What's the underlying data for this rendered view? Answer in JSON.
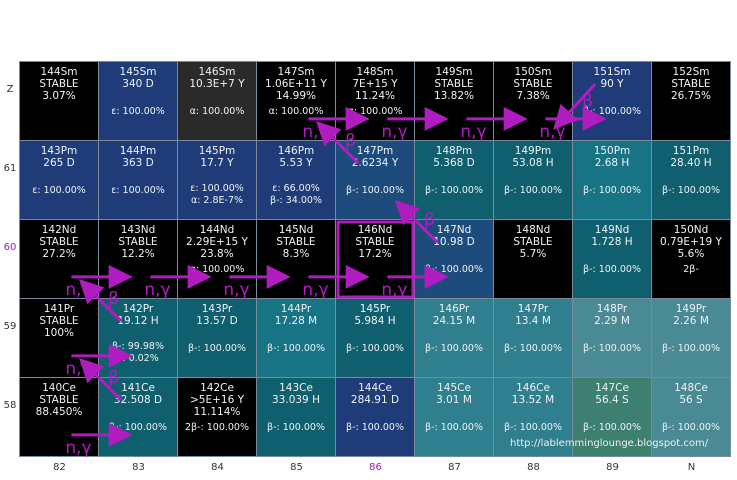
{
  "y_labels": [
    "Z",
    "61",
    "60",
    "59",
    "58"
  ],
  "x_labels": [
    "82",
    "83",
    "84",
    "85",
    "86",
    "87",
    "88",
    "89",
    "N"
  ],
  "highlight_color": "#a020a0",
  "rows": [
    [
      {
        "name": "144Sm",
        "l1": "STABLE",
        "l2": "3.07%",
        "l3": "",
        "color": "black"
      },
      {
        "name": "145Sm",
        "l1": "340 D",
        "l2": "",
        "l3": "ε: 100.00%",
        "color": "navy"
      },
      {
        "name": "146Sm",
        "l1": "10.3E+7 Y",
        "l2": "",
        "l3": "α: 100.00%",
        "color": "gray"
      },
      {
        "name": "147Sm",
        "l1": "1.06E+11 Y",
        "l2": "14.99%",
        "l3": "α: 100.00%",
        "color": "black"
      },
      {
        "name": "148Sm",
        "l1": "7E+15 Y",
        "l2": "11.24%",
        "l3": "α: 100.00%",
        "color": "black"
      },
      {
        "name": "149Sm",
        "l1": "STABLE",
        "l2": "13.82%",
        "l3": "",
        "color": "black"
      },
      {
        "name": "150Sm",
        "l1": "STABLE",
        "l2": "7.38%",
        "l3": "",
        "color": "black"
      },
      {
        "name": "151Sm",
        "l1": "90 Y",
        "l2": "",
        "l3": "β-: 100.00%",
        "color": "navy"
      },
      {
        "name": "152Sm",
        "l1": "STABLE",
        "l2": "26.75%",
        "l3": "",
        "color": "black"
      }
    ],
    [
      {
        "name": "143Pm",
        "l1": "265 D",
        "l2": "",
        "l3": "ε: 100.00%",
        "color": "navy"
      },
      {
        "name": "144Pm",
        "l1": "363 D",
        "l2": "",
        "l3": "ε: 100.00%",
        "color": "navy"
      },
      {
        "name": "145Pm",
        "l1": "17.7 Y",
        "l2": "",
        "l3": "ε: 100.00%",
        "l4": "α: 2.8E-7%",
        "color": "navy"
      },
      {
        "name": "146Pm",
        "l1": "5.53 Y",
        "l2": "",
        "l3": "ε: 66.00%",
        "l4": "β-: 34.00%",
        "color": "navy"
      },
      {
        "name": "147Pm",
        "l1": "2.6234 Y",
        "l2": "",
        "l3": "β-: 100.00%",
        "color": "steel"
      },
      {
        "name": "148Pm",
        "l1": "5.368 D",
        "l2": "",
        "l3": "β-: 100.00%",
        "color": "teal"
      },
      {
        "name": "149Pm",
        "l1": "53.08 H",
        "l2": "",
        "l3": "β-: 100.00%",
        "color": "teal"
      },
      {
        "name": "150Pm",
        "l1": "2.68 H",
        "l2": "",
        "l3": "β-: 100.00%",
        "color": "teal2"
      },
      {
        "name": "151Pm",
        "l1": "28.40 H",
        "l2": "",
        "l3": "β-: 100.00%",
        "color": "teal"
      }
    ],
    [
      {
        "name": "142Nd",
        "l1": "STABLE",
        "l2": "27.2%",
        "l3": "",
        "color": "black"
      },
      {
        "name": "143Nd",
        "l1": "STABLE",
        "l2": "12.2%",
        "l3": "",
        "color": "black"
      },
      {
        "name": "144Nd",
        "l1": "2.29E+15 Y",
        "l2": "23.8%",
        "l3": "α: 100.00%",
        "color": "black"
      },
      {
        "name": "145Nd",
        "l1": "STABLE",
        "l2": "8.3%",
        "l3": "",
        "color": "black"
      },
      {
        "name": "146Nd",
        "l1": "STABLE",
        "l2": "17.2%",
        "l3": "",
        "color": "black"
      },
      {
        "name": "147Nd",
        "l1": "10.98 D",
        "l2": "",
        "l3": "β-: 100.00%",
        "color": "steel"
      },
      {
        "name": "148Nd",
        "l1": "STABLE",
        "l2": "5.7%",
        "l3": "",
        "color": "black"
      },
      {
        "name": "149Nd",
        "l1": "1.728 H",
        "l2": "",
        "l3": "β-: 100.00%",
        "color": "teal"
      },
      {
        "name": "150Nd",
        "l1": "0.79E+19 Y",
        "l2": "5.6%",
        "l3": "2β-",
        "color": "black"
      }
    ],
    [
      {
        "name": "141Pr",
        "l1": "STABLE",
        "l2": "100%",
        "l3": "",
        "color": "black"
      },
      {
        "name": "142Pr",
        "l1": "19.12 H",
        "l2": "",
        "l3": "β-: 99.98%",
        "l4": "ε: 0.02%",
        "color": "teal"
      },
      {
        "name": "143Pr",
        "l1": "13.57 D",
        "l2": "",
        "l3": "β-: 100.00%",
        "color": "teal"
      },
      {
        "name": "144Pr",
        "l1": "17.28 M",
        "l2": "",
        "l3": "β-: 100.00%",
        "color": "teal2"
      },
      {
        "name": "145Pr",
        "l1": "5.984 H",
        "l2": "",
        "l3": "β-: 100.00%",
        "color": "teal"
      },
      {
        "name": "146Pr",
        "l1": "24.15 M",
        "l2": "",
        "l3": "β-: 100.00%",
        "color": "teal3"
      },
      {
        "name": "147Pr",
        "l1": "13.4 M",
        "l2": "",
        "l3": "β-: 100.00%",
        "color": "teal3"
      },
      {
        "name": "148Pr",
        "l1": "2.29 M",
        "l2": "",
        "l3": "β-: 100.00%",
        "color": "teal4"
      },
      {
        "name": "149Pr",
        "l1": "2.26 M",
        "l2": "",
        "l3": "β-: 100.00%",
        "color": "teal4"
      }
    ],
    [
      {
        "name": "140Ce",
        "l1": "STABLE",
        "l2": "88.450%",
        "l3": "",
        "color": "black"
      },
      {
        "name": "141Ce",
        "l1": "32.508 D",
        "l2": "",
        "l3": "β-: 100.00%",
        "color": "teal"
      },
      {
        "name": "142Ce",
        "l1": ">5E+16 Y",
        "l2": "11.114%",
        "l3": "2β-: 100.00%",
        "color": "black"
      },
      {
        "name": "143Ce",
        "l1": "33.039 H",
        "l2": "",
        "l3": "β-: 100.00%",
        "color": "teal"
      },
      {
        "name": "144Ce",
        "l1": "284.91 D",
        "l2": "",
        "l3": "β-: 100.00%",
        "color": "navy"
      },
      {
        "name": "145Ce",
        "l1": "3.01 M",
        "l2": "",
        "l3": "β-: 100.00%",
        "color": "teal3"
      },
      {
        "name": "146Ce",
        "l1": "13.52 M",
        "l2": "",
        "l3": "β-: 100.00%",
        "color": "teal3"
      },
      {
        "name": "147Ce",
        "l1": "56.4 S",
        "l2": "",
        "l3": "β-: 100.00%",
        "color": "green"
      },
      {
        "name": "148Ce",
        "l1": "56 S",
        "l2": "",
        "l3": "β-: 100.00%",
        "color": "teal4"
      }
    ]
  ],
  "arrows": [
    {
      "kind": "n,γ",
      "from": [
        0,
        3
      ],
      "to": [
        0,
        4
      ]
    },
    {
      "kind": "n,γ",
      "from": [
        0,
        4
      ],
      "to": [
        0,
        5
      ]
    },
    {
      "kind": "n,γ",
      "from": [
        0,
        5
      ],
      "to": [
        0,
        6
      ]
    },
    {
      "kind": "n,γ",
      "from": [
        0,
        6
      ],
      "to": [
        0,
        7
      ]
    },
    {
      "kind": "β",
      "from": [
        0,
        7
      ],
      "to": [
        0,
        6
      ]
    },
    {
      "kind": "β",
      "from": [
        1,
        4
      ],
      "to": [
        0,
        3
      ]
    },
    {
      "kind": "β",
      "from": [
        2,
        5
      ],
      "to": [
        1,
        4
      ]
    },
    {
      "kind": "n,γ",
      "from": [
        2,
        0
      ],
      "to": [
        2,
        1
      ]
    },
    {
      "kind": "n,γ",
      "from": [
        2,
        1
      ],
      "to": [
        2,
        2
      ]
    },
    {
      "kind": "n,γ",
      "from": [
        2,
        2
      ],
      "to": [
        2,
        3
      ]
    },
    {
      "kind": "n,γ",
      "from": [
        2,
        3
      ],
      "to": [
        2,
        4
      ]
    },
    {
      "kind": "n,γ",
      "from": [
        2,
        4
      ],
      "to": [
        2,
        5
      ]
    },
    {
      "kind": "β",
      "from": [
        3,
        1
      ],
      "to": [
        2,
        0
      ]
    },
    {
      "kind": "n,γ",
      "from": [
        3,
        0
      ],
      "to": [
        3,
        1
      ]
    },
    {
      "kind": "β",
      "from": [
        4,
        1
      ],
      "to": [
        3,
        0
      ]
    },
    {
      "kind": "n,γ",
      "from": [
        4,
        0
      ],
      "to": [
        4,
        1
      ]
    }
  ],
  "arrow_color": "#b01cc0",
  "boxed_cell": [
    2,
    4
  ],
  "url": "http://lablemminglounge.blogspot.com/"
}
